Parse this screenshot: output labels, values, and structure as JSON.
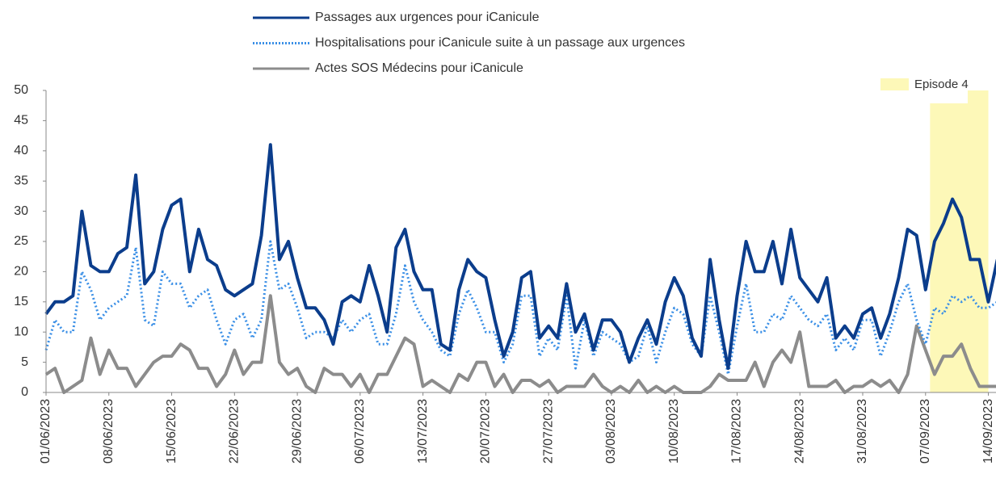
{
  "chart_data": {
    "type": "line",
    "x": [
      "01/06/2023",
      "02/06/2023",
      "03/06/2023",
      "04/06/2023",
      "05/06/2023",
      "06/06/2023",
      "07/06/2023",
      "08/06/2023",
      "09/06/2023",
      "10/06/2023",
      "11/06/2023",
      "12/06/2023",
      "13/06/2023",
      "14/06/2023",
      "15/06/2023",
      "16/06/2023",
      "17/06/2023",
      "18/06/2023",
      "19/06/2023",
      "20/06/2023",
      "21/06/2023",
      "22/06/2023",
      "23/06/2023",
      "24/06/2023",
      "25/06/2023",
      "26/06/2023",
      "27/06/2023",
      "28/06/2023",
      "29/06/2023",
      "30/06/2023",
      "01/07/2023",
      "02/07/2023",
      "03/07/2023",
      "04/07/2023",
      "05/07/2023",
      "06/07/2023",
      "07/07/2023",
      "08/07/2023",
      "09/07/2023",
      "10/07/2023",
      "11/07/2023",
      "12/07/2023",
      "13/07/2023",
      "14/07/2023",
      "15/07/2023",
      "16/07/2023",
      "17/07/2023",
      "18/07/2023",
      "19/07/2023",
      "20/07/2023",
      "21/07/2023",
      "22/07/2023",
      "23/07/2023",
      "24/07/2023",
      "25/07/2023",
      "26/07/2023",
      "27/07/2023",
      "28/07/2023",
      "29/07/2023",
      "30/07/2023",
      "31/07/2023",
      "01/08/2023",
      "02/08/2023",
      "03/08/2023",
      "04/08/2023",
      "05/08/2023",
      "06/08/2023",
      "07/08/2023",
      "08/08/2023",
      "09/08/2023",
      "10/08/2023",
      "11/08/2023",
      "12/08/2023",
      "13/08/2023",
      "14/08/2023",
      "15/08/2023",
      "16/08/2023",
      "17/08/2023",
      "18/08/2023",
      "19/08/2023",
      "20/08/2023",
      "21/08/2023",
      "22/08/2023",
      "23/08/2023",
      "24/08/2023",
      "25/08/2023",
      "26/08/2023",
      "27/08/2023",
      "28/08/2023",
      "29/08/2023",
      "30/08/2023",
      "31/08/2023",
      "01/09/2023",
      "02/09/2023",
      "03/09/2023",
      "04/09/2023",
      "05/09/2023",
      "06/09/2023",
      "07/09/2023",
      "08/09/2023",
      "09/09/2023",
      "10/09/2023",
      "11/09/2023",
      "12/09/2023",
      "13/09/2023",
      "14/09/2023",
      "15/09/2023"
    ],
    "xticks": [
      "01/06/2023",
      "08/06/2023",
      "15/06/2023",
      "22/06/2023",
      "29/06/2023",
      "06/07/2023",
      "13/07/2023",
      "20/07/2023",
      "27/07/2023",
      "03/08/2023",
      "10/08/2023",
      "17/08/2023",
      "24/08/2023",
      "31/08/2023",
      "07/09/2023",
      "14/09/2023"
    ],
    "ylim": [
      0,
      50
    ],
    "yticks": [
      0,
      5,
      10,
      15,
      20,
      25,
      30,
      35,
      40,
      45,
      50
    ],
    "highlight": {
      "label": "Episode 4",
      "start": "08/09/2023",
      "end": "14/09/2023",
      "color": "#fdf8b8"
    },
    "series": [
      {
        "name": "Passages aux urgences pour iCanicule",
        "color": "#0b3d8c",
        "style": "solid",
        "values": [
          13,
          15,
          15,
          16,
          30,
          21,
          20,
          20,
          23,
          24,
          36,
          18,
          20,
          27,
          31,
          32,
          20,
          27,
          22,
          21,
          17,
          16,
          17,
          18,
          26,
          41,
          22,
          25,
          19,
          14,
          14,
          12,
          8,
          15,
          16,
          15,
          21,
          16,
          10,
          24,
          27,
          20,
          17,
          17,
          8,
          7,
          17,
          22,
          20,
          19,
          12,
          6,
          10,
          19,
          20,
          9,
          11,
          9,
          18,
          10,
          13,
          7,
          12,
          12,
          10,
          5,
          9,
          12,
          8,
          15,
          19,
          16,
          9,
          6,
          22,
          12,
          4,
          16,
          25,
          20,
          20,
          25,
          18,
          27,
          19,
          17,
          15,
          19,
          9,
          11,
          9,
          13,
          14,
          9,
          13,
          19,
          27,
          26,
          17,
          25,
          28,
          32,
          29,
          22,
          22,
          15,
          22
        ]
      },
      {
        "name": "Hospitalisations pour iCanicule suite à un passage aux urgences",
        "color": "#3a8fe6",
        "style": "dotted",
        "values": [
          7,
          12,
          10,
          10,
          20,
          17,
          12,
          14,
          15,
          16,
          24,
          12,
          11,
          20,
          18,
          18,
          14,
          16,
          17,
          12,
          8,
          12,
          13,
          9,
          12,
          25,
          17,
          18,
          14,
          9,
          10,
          10,
          9,
          12,
          10,
          12,
          13,
          8,
          8,
          13,
          21,
          15,
          12,
          10,
          7,
          6,
          13,
          17,
          14,
          10,
          10,
          5,
          8,
          16,
          16,
          6,
          9,
          7,
          16,
          4,
          12,
          6,
          10,
          9,
          8,
          5,
          6,
          11,
          5,
          10,
          14,
          13,
          8,
          6,
          16,
          10,
          3,
          11,
          18,
          10,
          10,
          13,
          12,
          16,
          14,
          12,
          11,
          13,
          7,
          9,
          7,
          12,
          12,
          6,
          10,
          15,
          18,
          12,
          8,
          14,
          13,
          16,
          15,
          16,
          14,
          14,
          15
        ]
      },
      {
        "name": "Actes SOS Médecins pour iCanicule",
        "color": "#8c8c8c",
        "style": "solid",
        "values": [
          3,
          4,
          0,
          1,
          2,
          9,
          3,
          7,
          4,
          4,
          1,
          3,
          5,
          6,
          6,
          8,
          7,
          4,
          4,
          1,
          3,
          7,
          3,
          5,
          5,
          16,
          5,
          3,
          4,
          1,
          0,
          4,
          3,
          3,
          1,
          3,
          0,
          3,
          3,
          6,
          9,
          8,
          1,
          2,
          1,
          0,
          3,
          2,
          5,
          5,
          1,
          3,
          0,
          2,
          2,
          1,
          2,
          0,
          1,
          1,
          1,
          3,
          1,
          0,
          1,
          0,
          2,
          0,
          1,
          0,
          1,
          0,
          0,
          0,
          1,
          3,
          2,
          2,
          2,
          5,
          1,
          5,
          7,
          5,
          10,
          1,
          1,
          1,
          2,
          0,
          1,
          1,
          2,
          1,
          2,
          0,
          3,
          11,
          7,
          3,
          6,
          6,
          8,
          4,
          1,
          1,
          1
        ]
      }
    ]
  }
}
